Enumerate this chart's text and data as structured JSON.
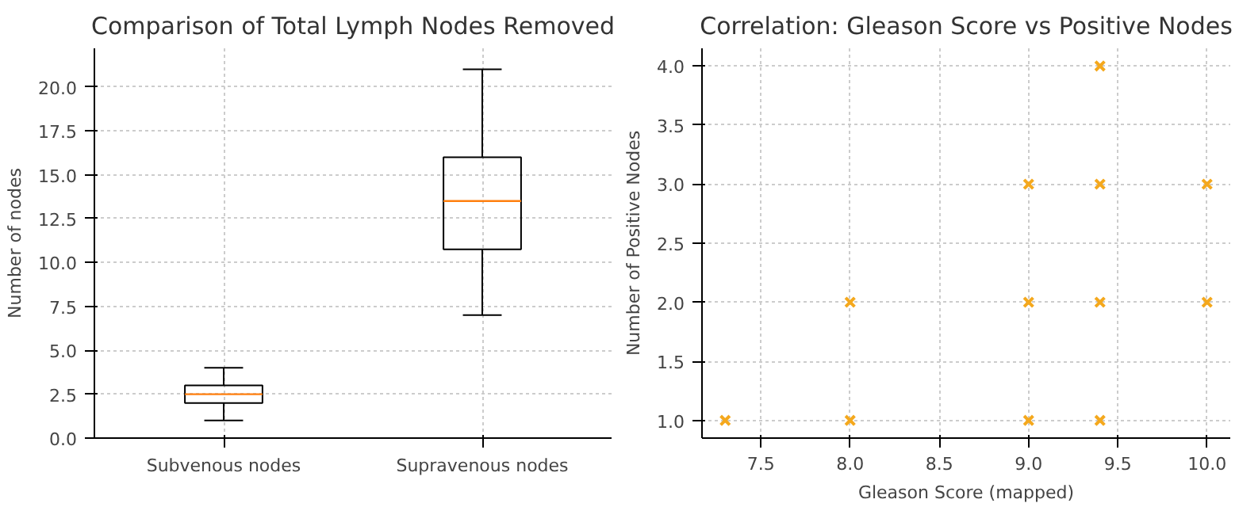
{
  "chart_data": [
    {
      "type": "box",
      "title": "Comparison of Total Lymph Nodes Removed",
      "ylabel": "Number of nodes",
      "categories": [
        "Subvenous nodes",
        "Supravenous nodes"
      ],
      "boxes": [
        {
          "low": 1,
          "q1": 2,
          "median": 2.5,
          "q3": 3,
          "high": 4
        },
        {
          "low": 7,
          "q1": 10.75,
          "median": 13.5,
          "q3": 16,
          "high": 21
        }
      ],
      "ylim": [
        0,
        22.2
      ],
      "yticks": [
        {
          "value": 0,
          "label": "0.0"
        },
        2.5,
        {
          "value": 5,
          "label": "5.0"
        },
        7.5,
        {
          "value": 10,
          "label": "10.0"
        },
        12.5,
        {
          "value": 15,
          "label": "15.0"
        },
        17.5,
        {
          "value": 20,
          "label": "20.0"
        }
      ],
      "grid": true
    },
    {
      "type": "scatter",
      "title": "Correlation: Gleason Score vs Positive Nodes",
      "xlabel": "Gleason Score (mapped)",
      "ylabel": "Number of Positive Nodes",
      "marker": "cross",
      "series": [
        {
          "color": "#f4a81d",
          "x": [
            7.3,
            8,
            8,
            9,
            9,
            9,
            9.4,
            9.4,
            9.4,
            9.4,
            10,
            10
          ],
          "values": [
            1,
            1,
            2,
            1,
            2,
            3,
            1,
            2,
            3,
            4,
            2,
            3
          ]
        }
      ],
      "xlim": [
        7.17,
        10.13
      ],
      "ylim": [
        0.85,
        4.15
      ],
      "xticks": [
        7.5,
        {
          "value": 8,
          "label": "8.0"
        },
        8.5,
        {
          "value": 9,
          "label": "9.0"
        },
        9.5,
        {
          "value": 10,
          "label": "10.0"
        }
      ],
      "yticks": [
        {
          "value": 1,
          "label": "1.0"
        },
        1.5,
        {
          "value": 2,
          "label": "2.0"
        },
        2.5,
        {
          "value": 3,
          "label": "3.0"
        },
        3.5,
        {
          "value": 4,
          "label": "4.0"
        }
      ],
      "grid": true
    }
  ]
}
